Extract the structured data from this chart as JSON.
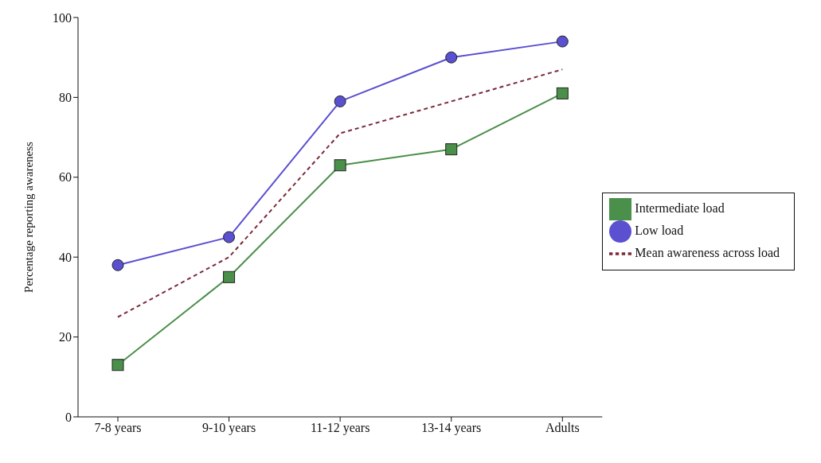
{
  "chart_data": {
    "type": "line",
    "ylabel": "Percentage reporting awareness",
    "categories": [
      "7-8 years",
      "9-10 years",
      "11-12 years",
      "13-14 years",
      "Adults"
    ],
    "series": [
      {
        "name": "Low load",
        "color": "#5a50d0",
        "values": [
          38,
          45,
          79,
          90,
          94
        ],
        "marker": "circle",
        "line_style": "solid"
      },
      {
        "name": "Intermediate load",
        "color": "#4a8f4a",
        "values": [
          13,
          35,
          63,
          67,
          81
        ],
        "marker": "square",
        "line_style": "solid"
      },
      {
        "name": "Mean awareness across load",
        "color": "#7a2a3a",
        "values": [
          25,
          40,
          71,
          79,
          87
        ],
        "marker": "none",
        "line_style": "dashed"
      }
    ],
    "ylim": [
      0,
      100
    ],
    "yticks": [
      0,
      20,
      40,
      60,
      80,
      100
    ],
    "grid": false,
    "legend": "right"
  }
}
